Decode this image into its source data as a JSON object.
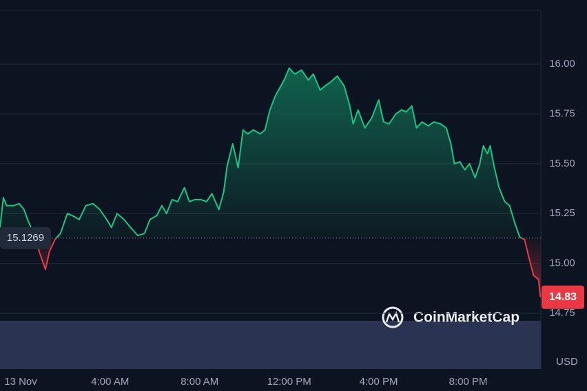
{
  "chart_data": {
    "type": "line",
    "x": [
      -0.92,
      -0.77,
      -0.62,
      -0.31,
      -0.06,
      0.15,
      0.31,
      0.62,
      0.86,
      1.11,
      1.29,
      1.54,
      1.78,
      2.09,
      2.31,
      2.62,
      2.92,
      3.23,
      3.54,
      3.85,
      4.06,
      4.31,
      4.62,
      4.92,
      5.23,
      5.54,
      5.78,
      6.09,
      6.31,
      6.52,
      6.77,
      7.02,
      7.32,
      7.54,
      7.78,
      8.06,
      8.31,
      8.55,
      8.86,
      9.08,
      9.23,
      9.48,
      9.72,
      9.94,
      10.15,
      10.4,
      10.71,
      10.92,
      11.14,
      11.38,
      11.63,
      11.82,
      12.0,
      12.25,
      12.55,
      12.86,
      13.08,
      13.38,
      13.6,
      13.85,
      14.15,
      14.46,
      14.71,
      14.86,
      15.08,
      15.38,
      15.69,
      16.0,
      16.22,
      16.46,
      16.77,
      17.02,
      17.23,
      17.48,
      17.69,
      17.94,
      18.22,
      18.46,
      18.77,
      19.02,
      19.23,
      19.38,
      19.63,
      19.85,
      20.06,
      20.31,
      20.52,
      20.68,
      20.86,
      20.98,
      21.17,
      21.38,
      21.63,
      21.85,
      22.09,
      22.31,
      22.52,
      22.71,
      22.92,
      23.14,
      23.23
    ],
    "values": [
      15.18,
      15.33,
      15.29,
      15.29,
      15.3,
      15.27,
      15.22,
      15.14,
      15.05,
      14.97,
      15.06,
      15.12,
      15.15,
      15.25,
      15.24,
      15.22,
      15.29,
      15.3,
      15.27,
      15.22,
      15.18,
      15.25,
      15.22,
      15.18,
      15.14,
      15.15,
      15.22,
      15.24,
      15.29,
      15.25,
      15.32,
      15.31,
      15.38,
      15.31,
      15.32,
      15.32,
      15.31,
      15.35,
      15.27,
      15.36,
      15.49,
      15.6,
      15.48,
      15.67,
      15.65,
      15.67,
      15.65,
      15.67,
      15.77,
      15.84,
      15.89,
      15.93,
      15.98,
      15.95,
      15.97,
      15.92,
      15.95,
      15.87,
      15.89,
      15.91,
      15.94,
      15.89,
      15.79,
      15.7,
      15.77,
      15.68,
      15.73,
      15.82,
      15.71,
      15.7,
      15.75,
      15.77,
      15.76,
      15.79,
      15.68,
      15.71,
      15.69,
      15.71,
      15.7,
      15.68,
      15.6,
      15.5,
      15.51,
      15.47,
      15.5,
      15.43,
      15.5,
      15.59,
      15.55,
      15.59,
      15.48,
      15.38,
      15.31,
      15.29,
      15.2,
      15.13,
      15.12,
      15.03,
      14.94,
      14.92,
      14.83
    ],
    "baseline": 15.1269,
    "color_up": "#16c784",
    "color_down": "#ea3943",
    "xlim": [
      -0.92,
      23.4
    ],
    "xticks": [
      {
        "value": 0,
        "label": "13 Nov"
      },
      {
        "value": 4,
        "label": "4:00 AM"
      },
      {
        "value": 8,
        "label": "8:00 AM"
      },
      {
        "value": 12,
        "label": "12:00 PM"
      },
      {
        "value": 16,
        "label": "4:00 PM"
      },
      {
        "value": 20,
        "label": "8:00 PM"
      }
    ],
    "ylim": [
      14.47,
      16.27
    ],
    "yticks": [
      {
        "value": 16,
        "label": "16.00"
      },
      15.75,
      {
        "value": 15.5,
        "label": "15.50"
      },
      15.25,
      {
        "value": 15,
        "label": "15.00"
      },
      14.75
    ],
    "y_unit": "USD",
    "watermark": "CoinMarketCap",
    "grid": true
  }
}
